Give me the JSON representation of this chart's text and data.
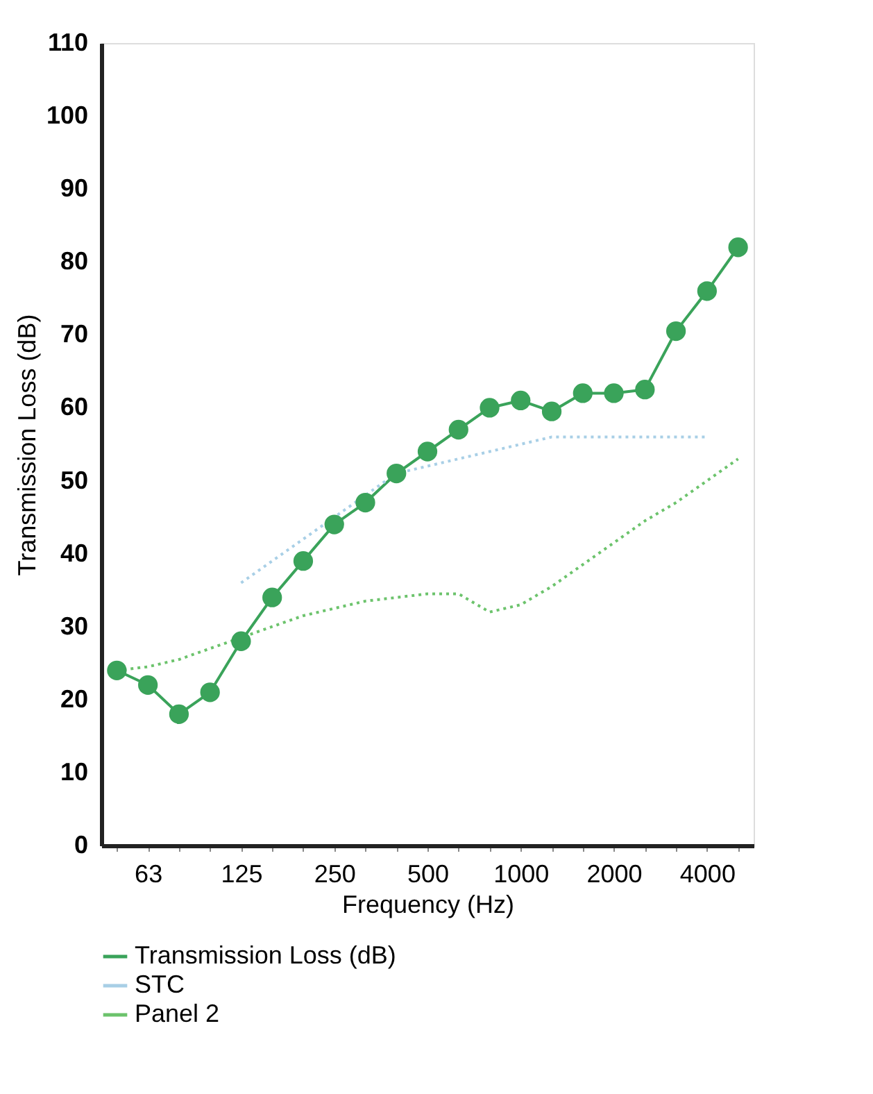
{
  "chart_data": {
    "type": "line",
    "xlabel": "Frequency (Hz)",
    "ylabel": "Transmission Loss (dB)",
    "categories": [
      null,
      "63",
      null,
      null,
      "125",
      null,
      null,
      "250",
      null,
      null,
      "500",
      null,
      null,
      "1000",
      null,
      null,
      "2000",
      null,
      null,
      "4000",
      null
    ],
    "ylim": [
      0,
      110
    ],
    "yticks": [
      0,
      10,
      20,
      30,
      40,
      50,
      60,
      70,
      80,
      90,
      100,
      110
    ],
    "grid": false,
    "legend": "bottom",
    "series": [
      {
        "name": "Transmission Loss (dB)",
        "color": "#3aa35a",
        "marker": "circle",
        "line_style": "solid",
        "values": [
          24,
          22,
          18,
          21,
          28,
          34,
          39,
          44,
          47,
          51,
          54,
          57,
          60,
          61,
          59.5,
          62,
          62,
          62.5,
          70.5,
          76,
          82
        ]
      },
      {
        "name": "STC",
        "color": "#a8cfe6",
        "marker": "none",
        "line_style": "dotted",
        "values": [
          null,
          null,
          null,
          null,
          36,
          39,
          42,
          45,
          48,
          51,
          52,
          53,
          54,
          55,
          56,
          56,
          56,
          56,
          56,
          56,
          null
        ]
      },
      {
        "name": "Panel 2",
        "color": "#6cc36c",
        "marker": "none",
        "line_style": "dotted",
        "values": [
          24,
          24.5,
          25.5,
          27,
          28.5,
          30,
          31.5,
          32.5,
          33.5,
          34,
          34.5,
          34.5,
          32,
          33,
          35.5,
          38.5,
          41.5,
          44.5,
          47,
          50,
          53
        ]
      }
    ]
  }
}
